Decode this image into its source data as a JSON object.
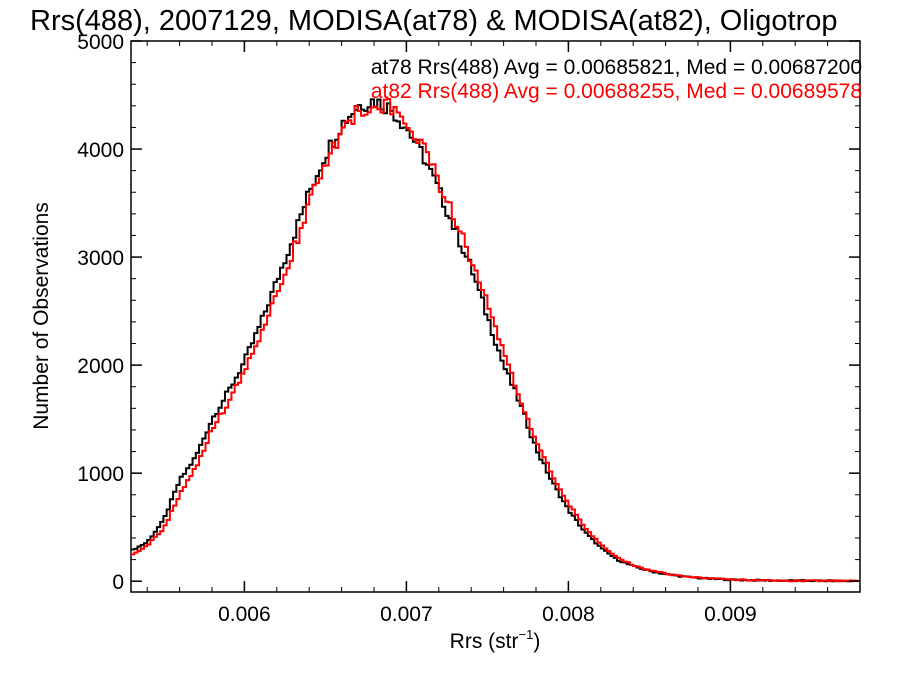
{
  "chart_data": {
    "type": "histogram",
    "title": "Rrs(488), 2007129, MODISA(at78) & MODISA(at82), Oligotrop",
    "xlabel": "Rrs (str",
    "xlabel_sup": "−1",
    "xlabel_close": ")",
    "ylabel": "Number of Observations",
    "xlim": [
      0.0053,
      0.0098
    ],
    "ylim": [
      -100,
      5000
    ],
    "x_ticks": [
      0.006,
      0.007,
      0.008,
      0.009
    ],
    "x_tick_labels": [
      "0.006",
      "0.007",
      "0.008",
      "0.009"
    ],
    "y_ticks": [
      0,
      1000,
      2000,
      3000,
      4000,
      5000
    ],
    "y_tick_labels": [
      "0",
      "1000",
      "2000",
      "3000",
      "4000",
      "5000"
    ],
    "legend_placement": "top-right",
    "grid": false,
    "series": [
      {
        "name": "at78",
        "legend_text": "at78 Rrs(488) Avg = 0.00685821, Med = 0.00687200",
        "color": "#000000",
        "x": [
          0.0053,
          0.0054,
          0.0055,
          0.0056,
          0.0057,
          0.0058,
          0.0059,
          0.006,
          0.0061,
          0.0062,
          0.0063,
          0.0064,
          0.0065,
          0.0066,
          0.0067,
          0.0068,
          0.0069,
          0.007,
          0.0071,
          0.0072,
          0.0073,
          0.0074,
          0.0075,
          0.0076,
          0.0077,
          0.0078,
          0.0079,
          0.008,
          0.0081,
          0.0082,
          0.0083,
          0.0084,
          0.0085,
          0.0086,
          0.0087,
          0.0088,
          0.0089,
          0.009,
          0.0091,
          0.0092,
          0.0093,
          0.0094,
          0.0095,
          0.0096,
          0.0097,
          0.0098
        ],
        "values": [
          280,
          360,
          560,
          930,
          1150,
          1500,
          1750,
          2030,
          2380,
          2780,
          3180,
          3600,
          3950,
          4230,
          4400,
          4450,
          4380,
          4200,
          3950,
          3620,
          3250,
          2900,
          2450,
          2000,
          1650,
          1230,
          920,
          660,
          460,
          310,
          200,
          140,
          95,
          65,
          45,
          30,
          20,
          14,
          10,
          8,
          6,
          5,
          4,
          3,
          2,
          2
        ]
      },
      {
        "name": "at82",
        "legend_text": "at82 Rrs(488) Avg = 0.00688255, Med = 0.00689578",
        "color": "#ff0000",
        "x": [
          0.0053,
          0.0054,
          0.0055,
          0.0056,
          0.0057,
          0.0058,
          0.0059,
          0.006,
          0.0061,
          0.0062,
          0.0063,
          0.0064,
          0.0065,
          0.0066,
          0.0067,
          0.0068,
          0.0069,
          0.007,
          0.0071,
          0.0072,
          0.0073,
          0.0074,
          0.0075,
          0.0076,
          0.0077,
          0.0078,
          0.0079,
          0.008,
          0.0081,
          0.0082,
          0.0083,
          0.0084,
          0.0085,
          0.0086,
          0.0087,
          0.0088,
          0.0089,
          0.009,
          0.0091,
          0.0092,
          0.0093,
          0.0094,
          0.0095,
          0.0096,
          0.0097,
          0.0098
        ],
        "values": [
          240,
          330,
          480,
          800,
          1050,
          1400,
          1650,
          1950,
          2280,
          2650,
          3050,
          3500,
          3870,
          4150,
          4350,
          4420,
          4400,
          4250,
          4050,
          3700,
          3350,
          2980,
          2600,
          2100,
          1700,
          1300,
          990,
          720,
          500,
          340,
          220,
          150,
          100,
          70,
          48,
          32,
          22,
          15,
          11,
          8,
          6,
          5,
          4,
          3,
          2,
          2
        ]
      }
    ]
  }
}
